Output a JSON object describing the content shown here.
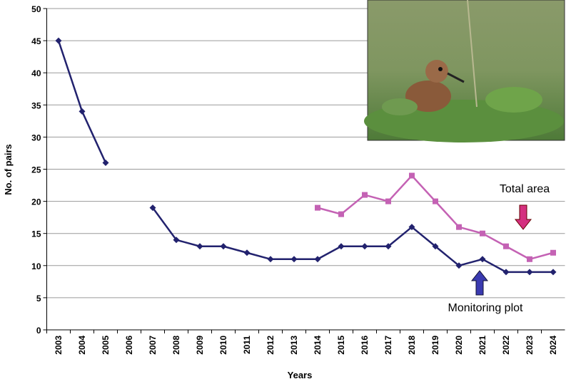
{
  "chart_data": {
    "type": "line",
    "categories": [
      "2003",
      "2004",
      "2005",
      "2006",
      "2007",
      "2008",
      "2009",
      "2010",
      "2011",
      "2012",
      "2013",
      "2014",
      "2015",
      "2016",
      "2017",
      "2018",
      "2019",
      "2020",
      "2021",
      "2022",
      "2023",
      "2024"
    ],
    "series": [
      {
        "name": "Monitoring plot",
        "color": "#22226e",
        "marker": "diamond",
        "values": [
          45,
          34,
          26,
          null,
          19,
          14,
          13,
          13,
          12,
          11,
          11,
          11,
          13,
          13,
          13,
          16,
          13,
          10,
          11,
          9,
          9,
          9
        ]
      },
      {
        "name": "Total area",
        "color": "#c462b4",
        "marker": "square",
        "values": [
          null,
          null,
          null,
          null,
          null,
          null,
          null,
          null,
          null,
          null,
          null,
          19,
          18,
          21,
          20,
          24,
          20,
          16,
          15,
          13,
          11,
          12
        ]
      }
    ],
    "x_label": "Years",
    "y_label": "No. of pairs",
    "ylim": [
      0,
      50
    ],
    "yticks": [
      0,
      5,
      10,
      15,
      20,
      25,
      30,
      35,
      40,
      45,
      50
    ],
    "grid": true
  }
}
